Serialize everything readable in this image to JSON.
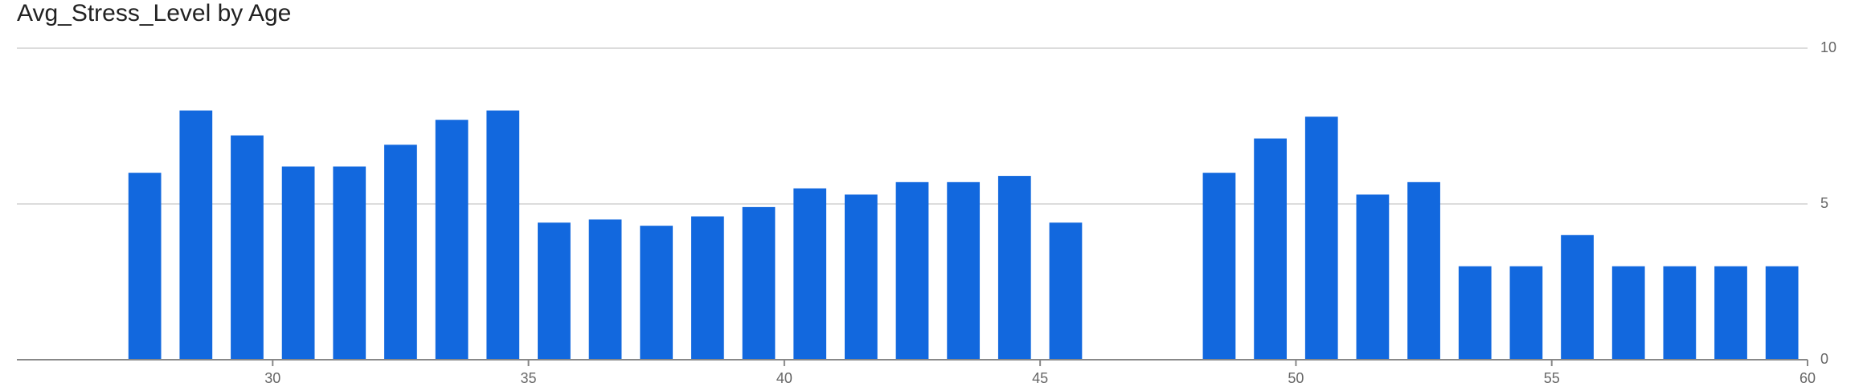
{
  "chart_data": {
    "type": "bar",
    "title": "Avg_Stress_Level by Age",
    "x": [
      27,
      28,
      29,
      30,
      31,
      32,
      33,
      34,
      35,
      36,
      37,
      38,
      39,
      40,
      41,
      42,
      43,
      44,
      45,
      48,
      49,
      50,
      51,
      52,
      53,
      54,
      55,
      56,
      57,
      58,
      59
    ],
    "values": [
      6.0,
      8.0,
      7.2,
      6.2,
      6.2,
      6.9,
      7.7,
      8.0,
      4.4,
      4.5,
      4.3,
      4.6,
      4.9,
      5.5,
      5.3,
      5.7,
      5.7,
      5.9,
      4.4,
      6.0,
      7.1,
      7.8,
      5.3,
      5.7,
      3.0,
      3.0,
      4.0,
      3.0,
      3.0,
      3.0,
      3.0
    ],
    "color": "#1268de",
    "xlim": [
      25,
      60
    ],
    "xticks": [
      30,
      35,
      40,
      45,
      50,
      55,
      60
    ],
    "ylim": [
      0,
      10
    ],
    "yticks": [
      0,
      5,
      10
    ],
    "grid": true
  }
}
